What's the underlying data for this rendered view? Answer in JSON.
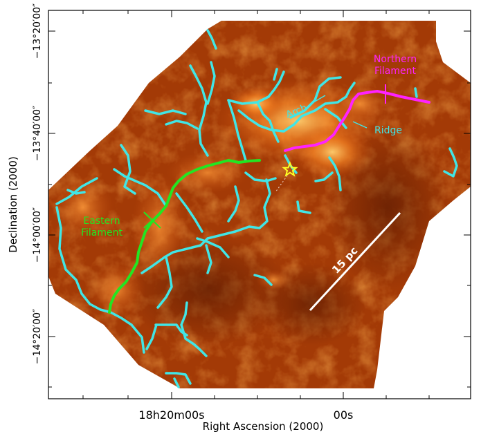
{
  "axes": {
    "xlabel": "Right Ascension (2000)",
    "ylabel": "Declination (2000)",
    "x_ticks": [
      "18h20m00s",
      "00s"
    ],
    "y_ticks": [
      "−13°20′00″",
      "−13°40′00″",
      "−14°00′00″",
      "−14°20′00″"
    ]
  },
  "annotations": {
    "northern": [
      "Northern",
      "Filament"
    ],
    "eastern": [
      "Eastern",
      "Filament"
    ],
    "arch": "Arch",
    "ridge": "Ridge",
    "scalebar": "15 pc"
  },
  "colors": {
    "map_base": "#a33a06",
    "filament_network": "#40e6e6",
    "northern_filament": "#ff22ff",
    "eastern_filament": "#22e622",
    "star": "#ffff22",
    "scalebar": "#ffffff",
    "frame": "#000000"
  },
  "icons": {
    "source_marker": "star-icon"
  }
}
